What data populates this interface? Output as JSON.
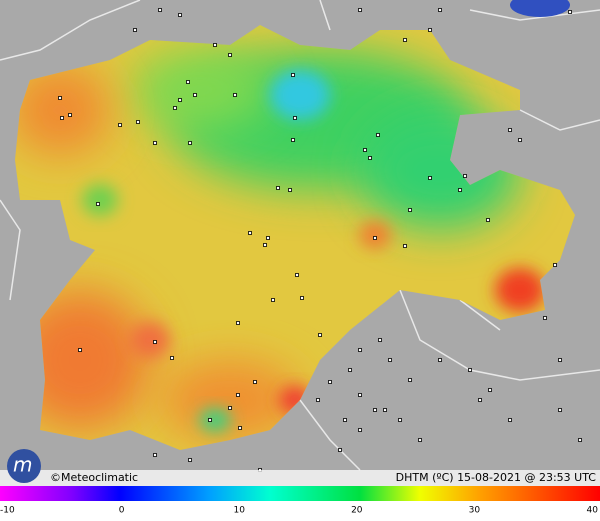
{
  "footer": {
    "credit": "©Meteoclimatic",
    "caption": "DHTM (ºC)  15-08-2021 @ 23:53 UTC"
  },
  "legend": {
    "ticks": [
      -10,
      0,
      10,
      20,
      30,
      40
    ]
  }
}
